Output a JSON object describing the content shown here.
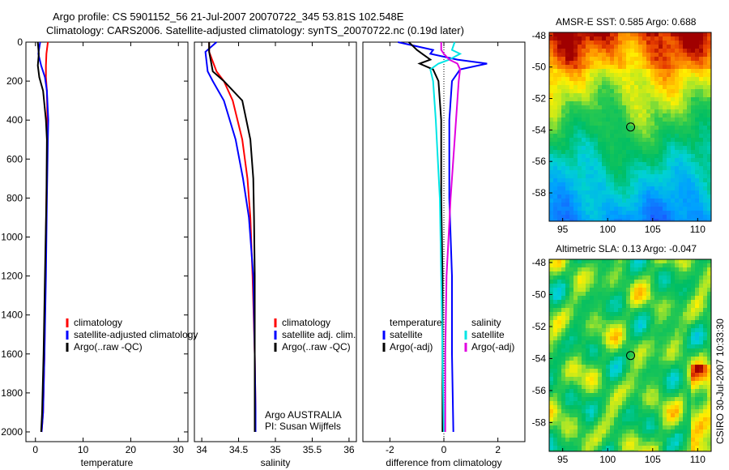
{
  "header": {
    "title_line1": "Argo profile: CS 5901152_56 21-Jul-2007 20070722_345 53.81S 102.548E",
    "title_line2": "Climatology: CARS2006. Satellite-adjusted climatology: synTS_20070722.nc (0.19d later)"
  },
  "side_stamp": "CSIRO 30-Jul-2007 10:33:30",
  "chart_data": [
    {
      "type": "line",
      "xlabel": "temperature",
      "ylabel": "",
      "xlim": [
        -2,
        32
      ],
      "ylim": [
        2050,
        0
      ],
      "xticks": [
        0,
        10,
        20,
        30
      ],
      "yticks": [
        0,
        200,
        400,
        600,
        800,
        1000,
        1200,
        1400,
        1600,
        1800,
        2000
      ],
      "legend": [
        "climatology",
        "satellite-adjusted climatology",
        "Argo(..raw -QC)"
      ],
      "series": [
        {
          "name": "climatology",
          "color": "#ff0000",
          "x": [
            2.6,
            2.3,
            2.2,
            2.2,
            2.4,
            2.5,
            2.5,
            2.3,
            2.1,
            1.9,
            1.6,
            1.3
          ],
          "y": [
            0,
            60,
            120,
            180,
            250,
            400,
            500,
            800,
            1200,
            1600,
            1900,
            2000
          ]
        },
        {
          "name": "satellite-adjusted climatology",
          "color": "#0000ff",
          "x": [
            1.0,
            0.6,
            1.2,
            2.0,
            2.4,
            2.7,
            2.6,
            2.4,
            2.2,
            1.9,
            1.6,
            1.3
          ],
          "y": [
            0,
            60,
            120,
            180,
            250,
            400,
            500,
            800,
            1200,
            1600,
            1900,
            2000
          ]
        },
        {
          "name": "Argo(..raw -QC)",
          "color": "#000000",
          "x": [
            0.5,
            0.7,
            0.5,
            0.8,
            1.6,
            2.2,
            2.4,
            2.3,
            2.0,
            1.7,
            1.4,
            1.2
          ],
          "y": [
            0,
            60,
            120,
            180,
            250,
            400,
            500,
            800,
            1200,
            1600,
            1900,
            2000
          ]
        }
      ]
    },
    {
      "type": "line",
      "xlabel": "salinity",
      "xlim": [
        33.9,
        36.1
      ],
      "ylim": [
        2050,
        0
      ],
      "xticks": [
        34,
        34.5,
        35,
        35.5,
        36
      ],
      "xtick_labels": [
        "34",
        "34.5",
        "35",
        "35.5",
        "36"
      ],
      "legend": [
        "climatology",
        "satellite adj. clim.",
        "Argo(..raw -QC)"
      ],
      "annotation": [
        "Argo AUSTRALIA",
        "PI: Susan Wijffels"
      ],
      "series": [
        {
          "name": "climatology",
          "color": "#ff0000",
          "x": [
            34.1,
            34.1,
            34.2,
            34.3,
            34.42,
            34.55,
            34.62,
            34.66,
            34.69,
            34.72,
            34.73,
            34.73
          ],
          "y": [
            0,
            50,
            150,
            200,
            300,
            500,
            700,
            900,
            1200,
            1600,
            1900,
            2000
          ]
        },
        {
          "name": "satellite adj. clim.",
          "color": "#0000ff",
          "x": [
            34.2,
            34.05,
            34.08,
            34.15,
            34.3,
            34.46,
            34.56,
            34.64,
            34.7,
            34.72,
            34.73,
            34.73
          ],
          "y": [
            0,
            50,
            150,
            200,
            300,
            500,
            700,
            900,
            1200,
            1600,
            1900,
            2000
          ]
        },
        {
          "name": "Argo(..raw -QC)",
          "color": "#000000",
          "x": [
            34.1,
            34.1,
            34.15,
            34.3,
            34.55,
            34.66,
            34.7,
            34.71,
            34.72,
            34.72,
            34.72,
            34.72
          ],
          "y": [
            0,
            50,
            150,
            200,
            300,
            500,
            700,
            900,
            1200,
            1600,
            1900,
            2000
          ]
        }
      ]
    },
    {
      "type": "line",
      "xlabel": "difference from climatology",
      "xlim": [
        -3,
        3
      ],
      "ylim": [
        2050,
        0
      ],
      "xticks": [
        -2,
        0,
        2
      ],
      "legend_groups": [
        {
          "title": "temperature",
          "entries": [
            "satellite",
            "Argo(-adj)"
          ]
        },
        {
          "title": "salinity",
          "entries": [
            "satellite",
            "Argo(-adj)"
          ]
        }
      ],
      "series": [
        {
          "name": "temperature satellite",
          "color": "#0000ff",
          "x": [
            -1.7,
            -0.4,
            -0.5,
            0.5,
            1.6,
            0.6,
            0.3,
            0.2,
            0.2,
            0.3,
            0.3,
            0.35
          ],
          "y": [
            0,
            40,
            60,
            90,
            110,
            140,
            200,
            400,
            800,
            1200,
            1600,
            2000
          ]
        },
        {
          "name": "temperature Argo(-adj)",
          "color": "#000000",
          "x": [
            -1.3,
            -1.0,
            -0.8,
            -0.5,
            -0.9,
            -0.4,
            -0.2,
            -0.1,
            -0.1,
            -0.05,
            -0.05,
            -0.05
          ],
          "y": [
            0,
            40,
            60,
            90,
            110,
            140,
            200,
            400,
            800,
            1200,
            1600,
            2000
          ]
        },
        {
          "name": "salinity satellite",
          "color": "#00e5e5",
          "x": [
            0.4,
            0.3,
            0.6,
            0.2,
            -0.2,
            -0.5,
            -0.4,
            -0.3,
            -0.15,
            -0.1,
            -0.05,
            0.0
          ],
          "y": [
            0,
            40,
            60,
            90,
            110,
            140,
            200,
            400,
            800,
            1200,
            1600,
            2000
          ]
        },
        {
          "name": "salinity Argo(-adj)",
          "color": "#e000e0",
          "x": [
            -0.1,
            -0.1,
            0.0,
            0.2,
            0.5,
            0.6,
            0.55,
            0.45,
            0.25,
            0.1,
            0.05,
            0.05
          ],
          "y": [
            0,
            40,
            60,
            90,
            110,
            140,
            200,
            400,
            800,
            1200,
            1600,
            2000
          ]
        }
      ]
    },
    {
      "type": "heatmap",
      "title": "AMSR-E SST: 0.585 Argo: 0.688",
      "xlim": [
        93.5,
        111.5
      ],
      "ylim": [
        -59.8,
        -47.8
      ],
      "xticks": [
        95,
        100,
        105,
        110
      ],
      "yticks": [
        -48,
        -50,
        -52,
        -54,
        -56,
        -58
      ],
      "marker": {
        "x": 102.548,
        "y": -53.81
      }
    },
    {
      "type": "heatmap",
      "title": "Altimetric SLA: 0.13 Argo: -0.047",
      "xlim": [
        93.5,
        111.5
      ],
      "ylim": [
        -59.8,
        -47.8
      ],
      "xticks": [
        95,
        100,
        105,
        110
      ],
      "yticks": [
        -48,
        -50,
        -52,
        -54,
        -56,
        -58
      ],
      "marker": {
        "x": 102.548,
        "y": -53.81
      }
    }
  ]
}
